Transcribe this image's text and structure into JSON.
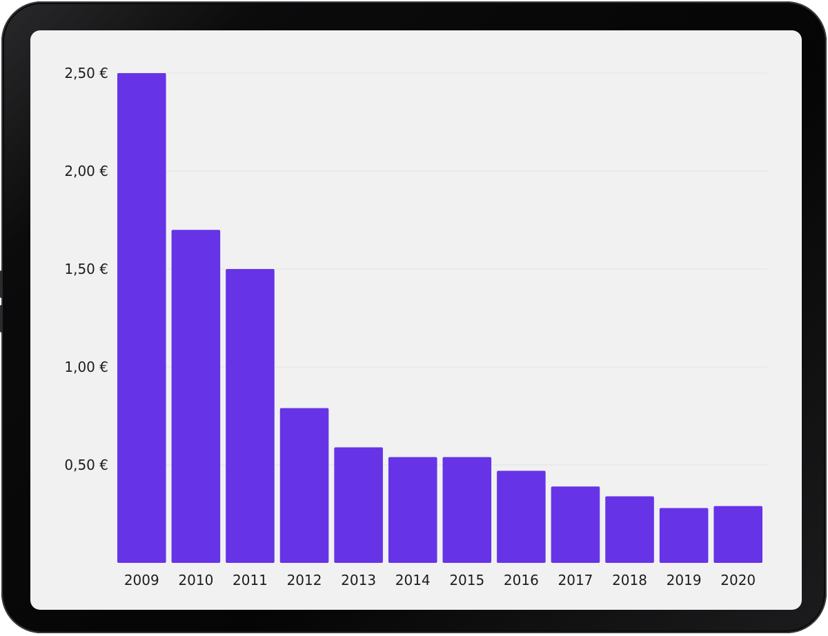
{
  "chart_data": {
    "type": "bar",
    "categories": [
      "2009",
      "2010",
      "2011",
      "2012",
      "2013",
      "2014",
      "2015",
      "2016",
      "2017",
      "2018",
      "2019",
      "2020"
    ],
    "values": [
      2.5,
      1.7,
      1.5,
      0.79,
      0.59,
      0.54,
      0.54,
      0.47,
      0.39,
      0.34,
      0.28,
      0.29
    ],
    "y_ticks": [
      0.5,
      1.0,
      1.5,
      2.0,
      2.5
    ],
    "y_tick_labels": [
      "0,50 €",
      "1,00 €",
      "1,50 €",
      "2,00 €",
      "2,50 €"
    ],
    "ylim": [
      0,
      2.5
    ],
    "title": "",
    "xlabel": "",
    "ylabel": "",
    "grid": true,
    "legend": false,
    "colors": {
      "bar": "#6634e6",
      "grid": "#e2e2e2",
      "screen_background": "#f1f1f1",
      "text": "#1c1c1c"
    }
  }
}
